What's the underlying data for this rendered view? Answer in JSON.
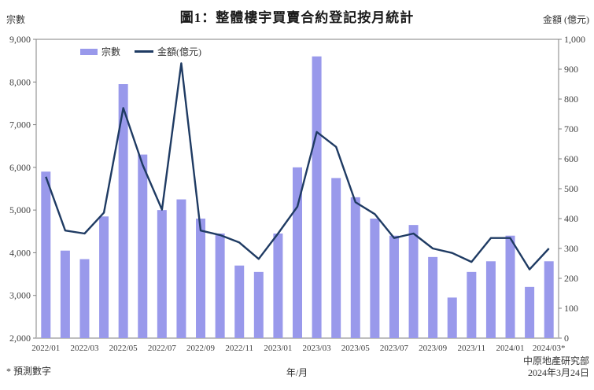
{
  "title": "圖1：整體樓宇買賣合約登記按月統計",
  "legend": {
    "bars_label": "宗數",
    "line_label": "金額(億元)"
  },
  "footnote": "* 預測數字",
  "source": {
    "name": "中原地產研究部",
    "date": "2024年3月24日"
  },
  "colors": {
    "bar": "#9999EB",
    "line": "#1F3B63",
    "frame": "#808080",
    "tick_text": "#404040"
  },
  "chart_data": {
    "type": "bar",
    "subtype": "combo-bar-line",
    "title": "圖1：整體樓宇買賣合約登記按月統計",
    "xlabel": "年/月",
    "grid": false,
    "legend_position": "top-left-inside",
    "categories": [
      "2022/01",
      "2022/02",
      "2022/03",
      "2022/04",
      "2022/05",
      "2022/06",
      "2022/07",
      "2022/08",
      "2022/09",
      "2022/10",
      "2022/11",
      "2022/12",
      "2023/01",
      "2023/02",
      "2023/03",
      "2023/04",
      "2023/05",
      "2023/06",
      "2023/07",
      "2023/08",
      "2023/09",
      "2023/10",
      "2023/11",
      "2023/12",
      "2024/01",
      "2024/02",
      "2024/03"
    ],
    "x_tick_labels": [
      "2022/01",
      "2022/03",
      "2022/05",
      "2022/07",
      "2022/09",
      "2022/11",
      "2023/01",
      "2023/03",
      "2023/05",
      "2023/07",
      "2023/09",
      "2023/11",
      "2024/01",
      "2024/03*"
    ],
    "series": [
      {
        "name": "宗數",
        "type": "bar",
        "axis": "left",
        "values": [
          5900,
          4050,
          3850,
          4850,
          7950,
          6300,
          5000,
          5250,
          4800,
          4450,
          3700,
          3550,
          4450,
          6000,
          8600,
          5750,
          5300,
          4800,
          4400,
          4650,
          3900,
          2950,
          3550,
          3800,
          4400,
          3200,
          3800
        ]
      },
      {
        "name": "金額(億元)",
        "type": "line",
        "axis": "right",
        "values": [
          540,
          360,
          350,
          420,
          770,
          580,
          430,
          920,
          360,
          345,
          320,
          265,
          350,
          440,
          690,
          640,
          455,
          415,
          335,
          350,
          300,
          285,
          255,
          335,
          335,
          230,
          300
        ]
      }
    ],
    "left_axis": {
      "title": "宗數",
      "min": 2000,
      "max": 9000,
      "tick_step": 1000
    },
    "right_axis": {
      "title": "金額 (億元)",
      "min": 0,
      "max": 1000,
      "tick_step": 100
    }
  }
}
